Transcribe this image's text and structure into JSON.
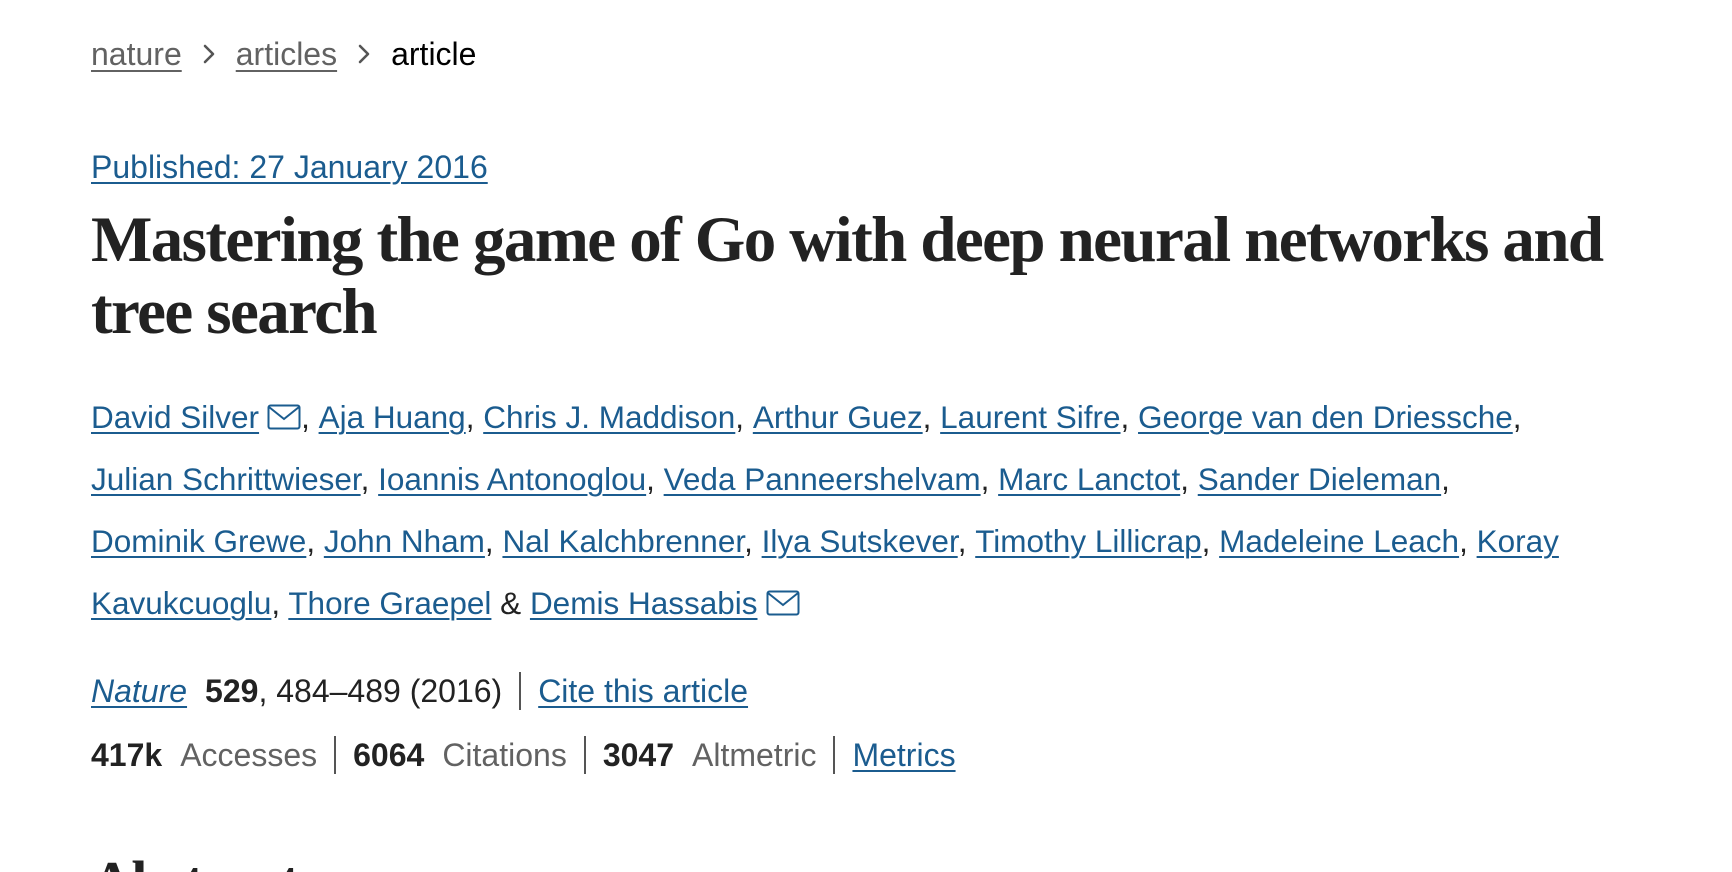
{
  "breadcrumb": {
    "items": [
      {
        "label": "nature",
        "link": true
      },
      {
        "label": "articles",
        "link": true
      },
      {
        "label": "article",
        "link": false
      }
    ]
  },
  "article": {
    "published": "Published: 27 January 2016",
    "title": "Mastering the game of Go with deep neural networks and tree search",
    "authors": [
      {
        "name": "David Silver",
        "email": true
      },
      {
        "name": "Aja Huang"
      },
      {
        "name": "Chris J. Maddison"
      },
      {
        "name": "Arthur Guez"
      },
      {
        "name": "Laurent Sifre"
      },
      {
        "name": "George van den Driessche"
      },
      {
        "name": "Julian Schrittwieser"
      },
      {
        "name": "Ioannis Antonoglou"
      },
      {
        "name": "Veda Panneershelvam"
      },
      {
        "name": "Marc Lanctot"
      },
      {
        "name": "Sander Dieleman"
      },
      {
        "name": "Dominik Grewe"
      },
      {
        "name": "John Nham"
      },
      {
        "name": "Nal Kalchbrenner"
      },
      {
        "name": "Ilya Sutskever"
      },
      {
        "name": "Timothy Lillicrap"
      },
      {
        "name": "Madeleine Leach"
      },
      {
        "name": "Koray Kavukcuoglu"
      },
      {
        "name": "Thore Graepel"
      },
      {
        "name": "Demis Hassabis",
        "email": true
      }
    ],
    "citation": {
      "journal": "Nature",
      "volume": "529",
      "pages_year": ", 484–489 (2016)",
      "cite_label": "Cite this article"
    },
    "metrics": {
      "accesses_value": "417k",
      "accesses_label": "Accesses",
      "citations_value": "6064",
      "citations_label": "Citations",
      "altmetric_value": "3047",
      "altmetric_label": "Altmetric",
      "metrics_link": "Metrics"
    },
    "abstract_heading": "Abstract"
  },
  "colors": {
    "link": "#1b5c8f",
    "text": "#222222",
    "muted": "#626262"
  },
  "icons": {
    "breadcrumb_separator": "chevron-right-icon",
    "author_email": "mail-icon"
  }
}
